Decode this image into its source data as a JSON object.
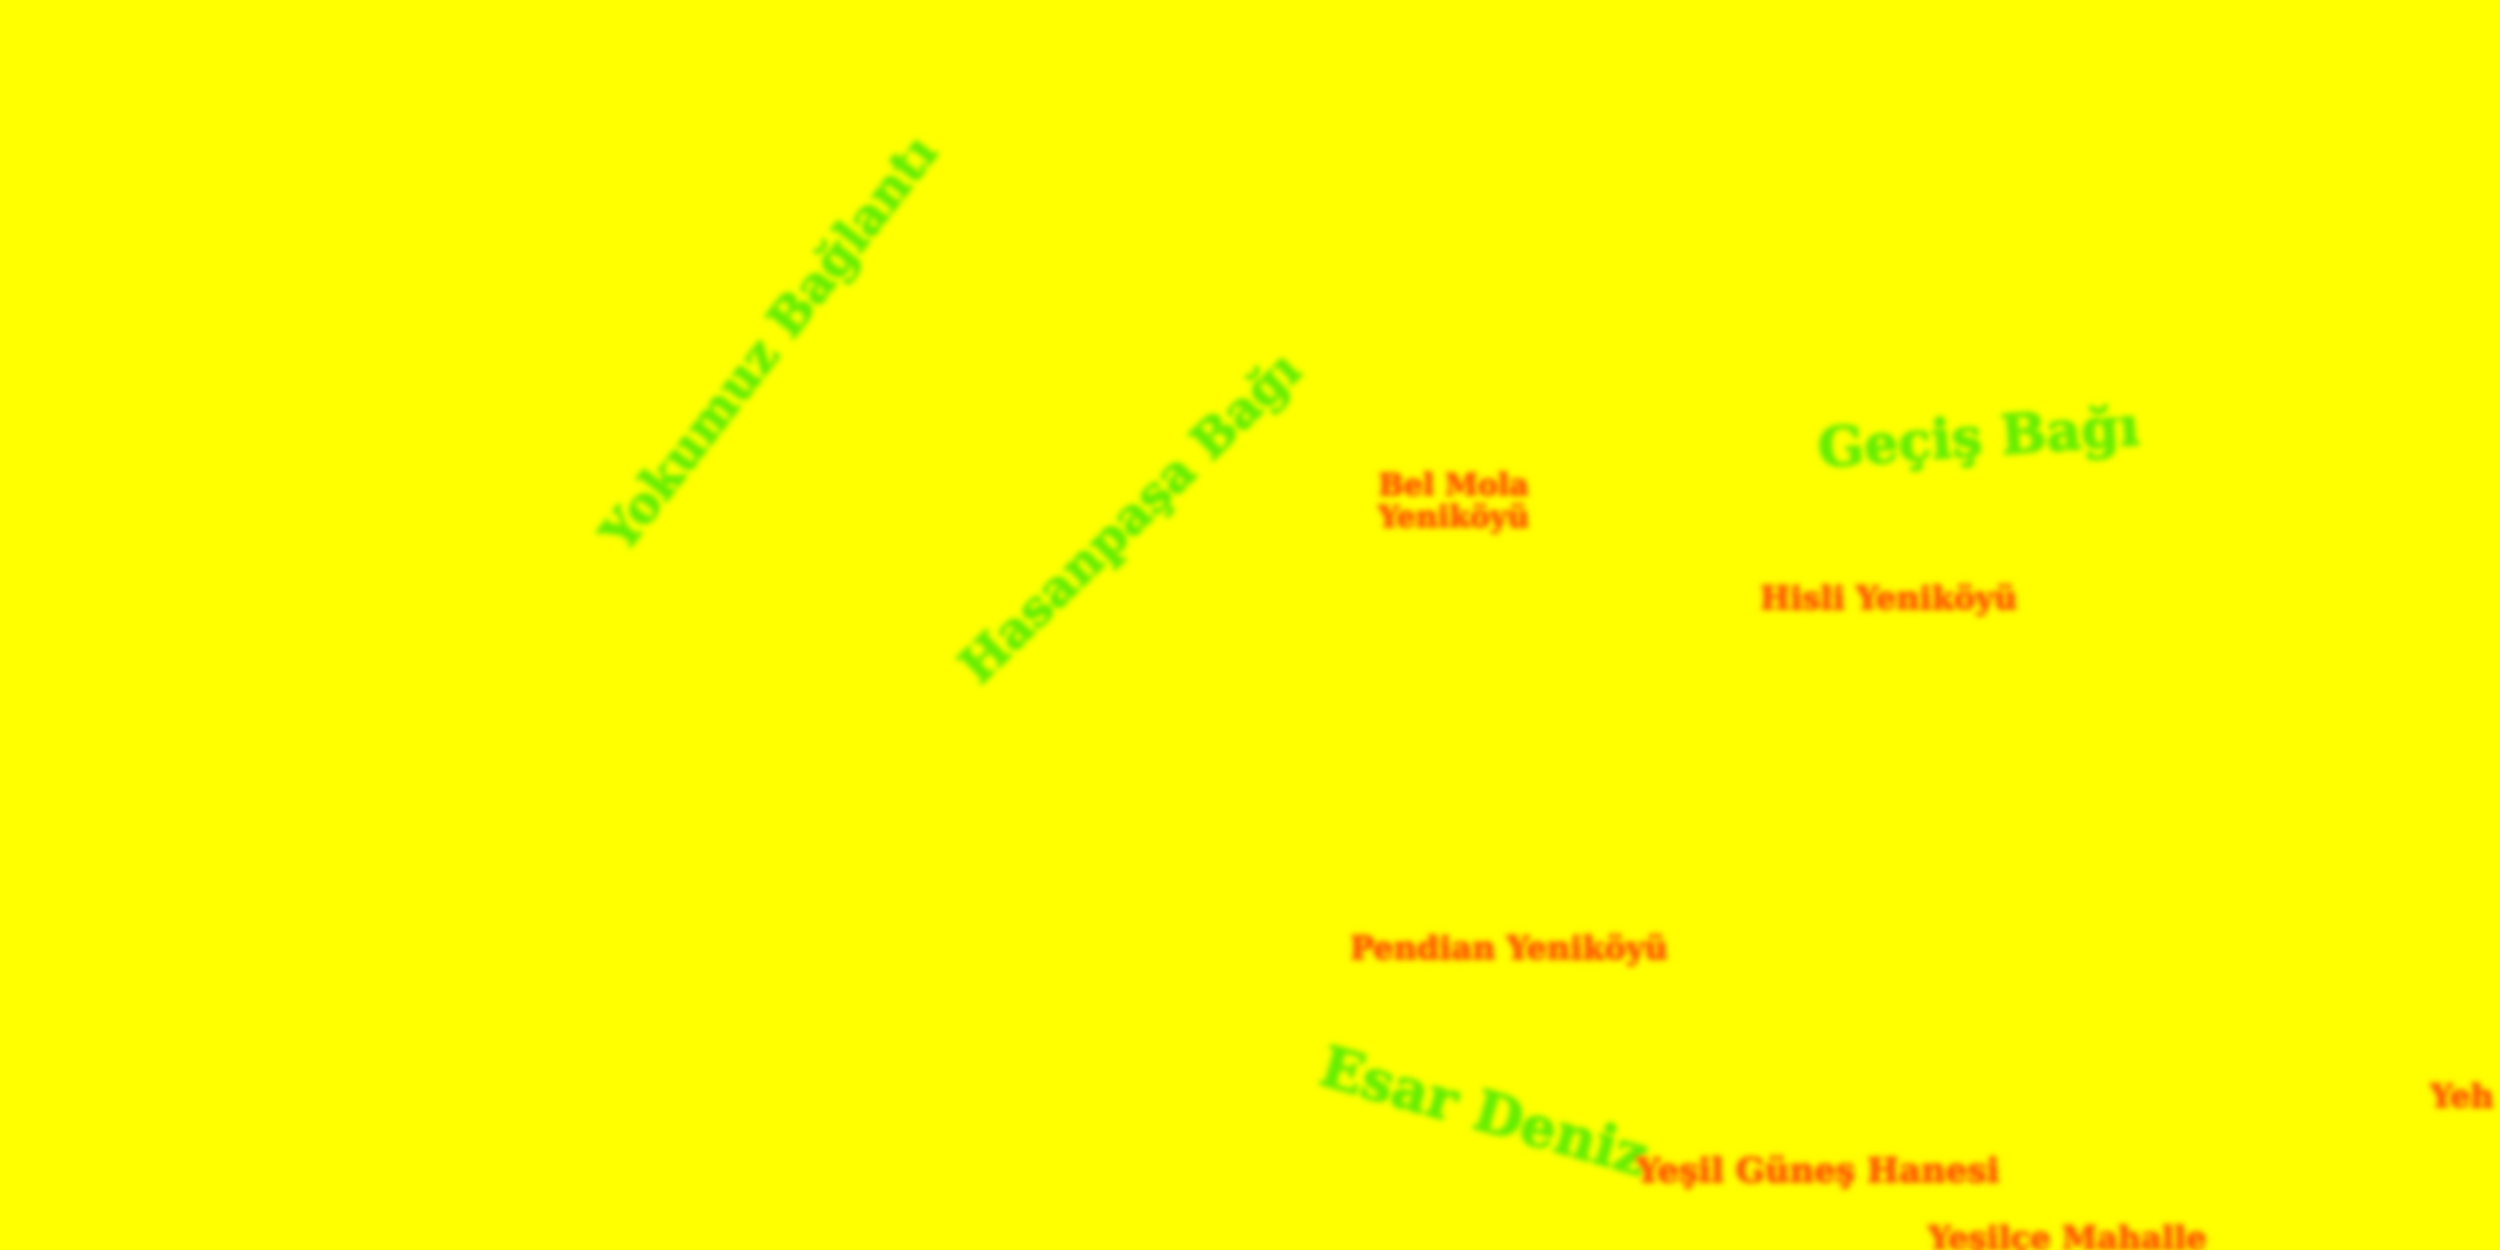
{
  "map": {
    "background_color": "#ffff00",
    "label_colors": {
      "green": "#66ee00",
      "orange": "#ff5a00"
    },
    "labels": {
      "yokumuz_baglantisi": "Yokumuz Bağlantı",
      "hasanpasa_bagi": "Hasanpaşa Bağı",
      "gecis_bagi": "Geçiş Bağı",
      "bel_mola_line1": "Bel Mola",
      "bel_mola_line2": "Yeniköyü",
      "hisli_yenikoyu": "Hisli Yeniköyü",
      "pendian_yenikoyu": "Pendian Yeniköyü",
      "esar_deniz": "Esar Deniz",
      "yesil_gunes_hanesi": "Yeşil Güneş Hanesi",
      "bottom_partial": "Yeşilçe Mahalle",
      "right_partial": "Yeh"
    }
  }
}
